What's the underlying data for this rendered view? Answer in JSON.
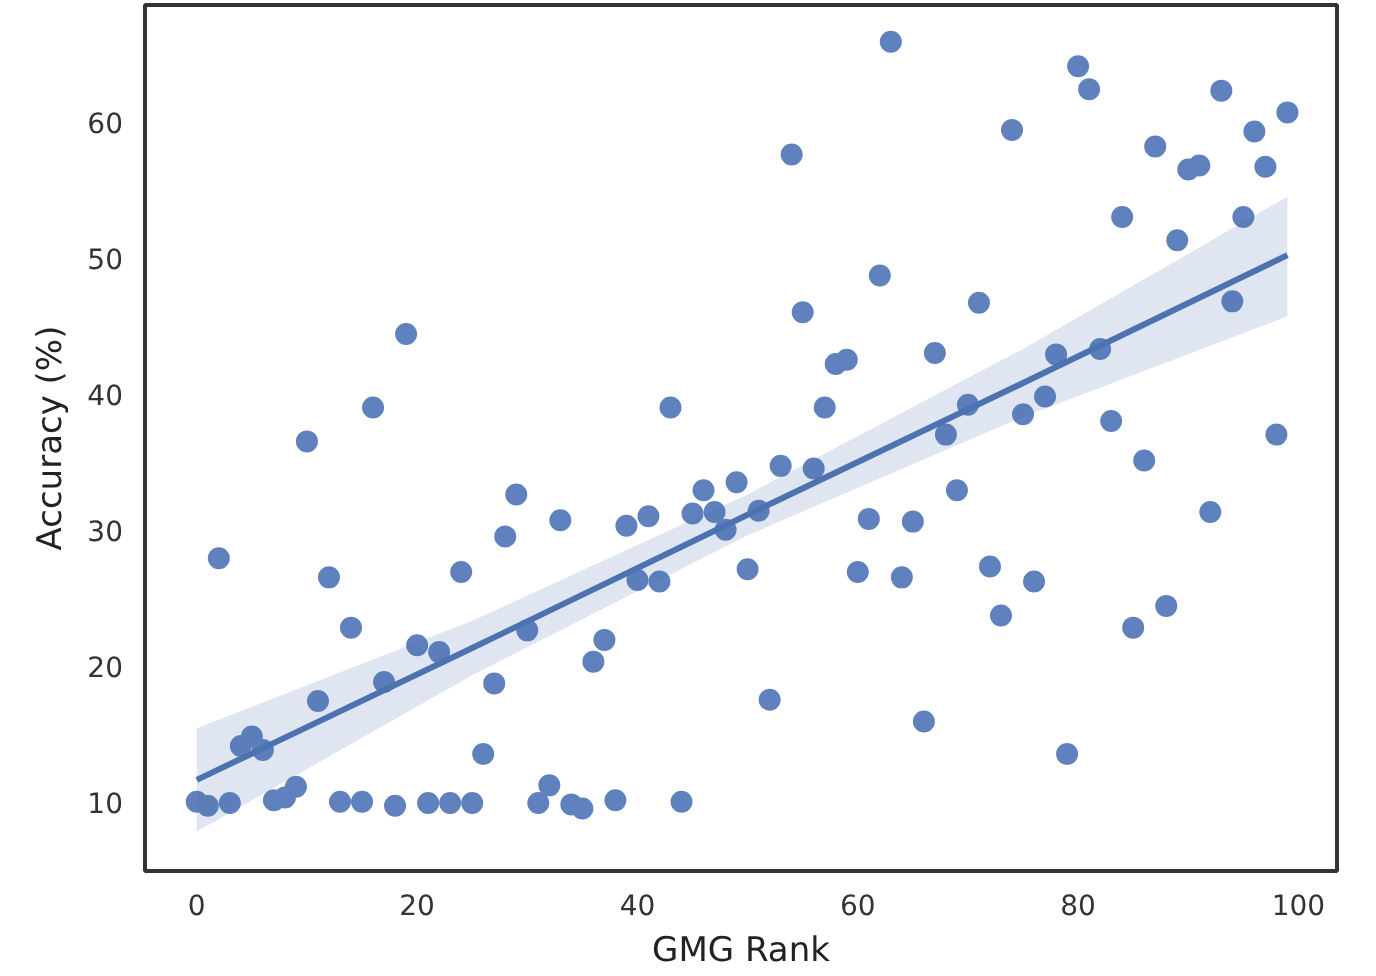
{
  "chart_data": {
    "type": "scatter",
    "xlabel": "GMG Rank",
    "ylabel": "Accuracy (%)",
    "xlim": [
      -4.7,
      103.5
    ],
    "ylim": [
      4.9,
      68.6
    ],
    "xticks": [
      0,
      20,
      40,
      60,
      80,
      100
    ],
    "yticks": [
      10,
      20,
      30,
      40,
      50,
      60
    ],
    "x": [
      0,
      1,
      2,
      3,
      4,
      5,
      6,
      7,
      8,
      9,
      10,
      11,
      12,
      13,
      14,
      15,
      16,
      17,
      18,
      19,
      20,
      21,
      22,
      23,
      24,
      25,
      26,
      27,
      28,
      29,
      30,
      31,
      32,
      33,
      34,
      35,
      36,
      37,
      38,
      39,
      40,
      41,
      42,
      43,
      44,
      45,
      46,
      47,
      48,
      49,
      50,
      51,
      52,
      53,
      54,
      55,
      56,
      57,
      58,
      59,
      60,
      61,
      62,
      63,
      64,
      65,
      66,
      67,
      68,
      69,
      70,
      71,
      72,
      73,
      74,
      75,
      76,
      77,
      78,
      79,
      80,
      81,
      82,
      83,
      84,
      85,
      86,
      87,
      88,
      89,
      90,
      91,
      92,
      93,
      94,
      95,
      96,
      97,
      98,
      99
    ],
    "series": [
      {
        "marker": "circle",
        "color": "#5f81bd",
        "values": [
          10.0,
          9.7,
          27.9,
          9.9,
          14.1,
          14.8,
          13.8,
          10.1,
          10.3,
          11.1,
          36.5,
          17.4,
          26.5,
          10.0,
          22.8,
          10.0,
          39.0,
          18.8,
          9.7,
          44.4,
          21.5,
          9.9,
          21.0,
          9.9,
          26.9,
          9.9,
          13.5,
          18.7,
          29.5,
          32.6,
          22.6,
          9.9,
          11.2,
          30.7,
          9.8,
          9.5,
          20.3,
          21.9,
          10.1,
          30.3,
          26.3,
          31.0,
          26.2,
          39.0,
          10.0,
          31.2,
          32.9,
          31.3,
          30.0,
          33.5,
          27.1,
          31.4,
          17.5,
          34.7,
          57.6,
          46.0,
          34.5,
          39.0,
          42.2,
          42.5,
          26.9,
          30.8,
          48.7,
          65.9,
          26.5,
          30.6,
          15.9,
          43.0,
          37.0,
          32.9,
          39.2,
          46.7,
          27.3,
          23.7,
          59.4,
          38.5,
          26.2,
          39.8,
          42.9,
          13.5,
          64.1,
          62.4,
          43.3,
          38.0,
          53.0,
          22.8,
          35.1,
          58.2,
          24.4,
          51.3,
          56.5,
          56.8,
          31.3,
          62.3,
          46.8,
          53.0,
          59.3,
          56.7,
          37.0,
          60.7
        ]
      },
      {
        "type": "line",
        "color": "#4c72b0",
        "x": [
          0,
          25,
          50,
          75,
          99
        ],
        "values": [
          11.6,
          21.3,
          31.1,
          40.8,
          50.2
        ],
        "lower": [
          7.8,
          19.3,
          29.6,
          38.3,
          45.7
        ],
        "upper": [
          15.4,
          23.3,
          32.6,
          43.3,
          54.5
        ]
      }
    ]
  }
}
